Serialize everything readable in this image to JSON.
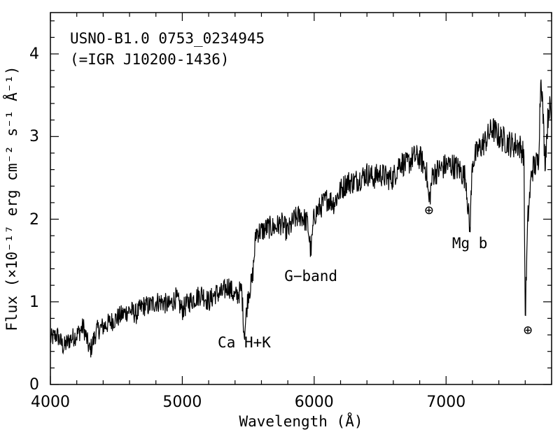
{
  "chart_data": {
    "type": "line",
    "title": "USNO-B1.0 0753_0234945",
    "subtitle": "(=IGR J10200-1436)",
    "xlabel": "Wavelength (Å)",
    "ylabel": "Flux (×10⁻¹⁷ erg cm⁻² s⁻¹ Å⁻¹)",
    "xlim": [
      4000,
      7800
    ],
    "ylim": [
      0,
      4.5
    ],
    "xticks": [
      "4000",
      "5000",
      "6000",
      "7000"
    ],
    "yticks": [
      "0",
      "1",
      "2",
      "3",
      "4"
    ],
    "grid": false,
    "series": [
      {
        "values_note": "",
        "x": [
          4000,
          4050,
          4100,
          4150,
          4200,
          4250,
          4300,
          4350,
          4400,
          4450,
          4500,
          4550,
          4600,
          4650,
          4700,
          4750,
          4800,
          4850,
          4900,
          4950,
          5000,
          5050,
          5100,
          5150,
          5200,
          5250,
          5300,
          5350,
          5400,
          5450,
          5470,
          5500,
          5530,
          5560,
          5600,
          5650,
          5700,
          5750,
          5800,
          5850,
          5900,
          5950,
          5975,
          6000,
          6050,
          6100,
          6150,
          6200,
          6250,
          6300,
          6350,
          6400,
          6450,
          6500,
          6550,
          6600,
          6650,
          6700,
          6750,
          6800,
          6850,
          6870,
          6900,
          6950,
          7000,
          7050,
          7100,
          7150,
          7180,
          7200,
          7250,
          7300,
          7350,
          7400,
          7450,
          7500,
          7550,
          7590,
          7600,
          7620,
          7650,
          7700,
          7720,
          7750,
          7780,
          7800
        ],
        "y": [
          0.55,
          0.6,
          0.45,
          0.55,
          0.6,
          0.7,
          0.4,
          0.65,
          0.7,
          0.75,
          0.8,
          0.85,
          0.9,
          0.85,
          0.95,
          0.95,
          1.0,
          1.0,
          0.95,
          1.05,
          0.9,
          1.0,
          1.05,
          1.1,
          1.0,
          1.1,
          1.1,
          1.2,
          1.05,
          1.15,
          0.6,
          1.1,
          1.25,
          1.85,
          1.85,
          1.9,
          1.9,
          1.95,
          1.85,
          2.0,
          2.05,
          1.95,
          1.6,
          2.05,
          2.15,
          2.25,
          2.2,
          2.35,
          2.45,
          2.45,
          2.5,
          2.55,
          2.5,
          2.55,
          2.5,
          2.5,
          2.7,
          2.65,
          2.75,
          2.75,
          2.6,
          2.2,
          2.55,
          2.6,
          2.65,
          2.65,
          2.6,
          2.5,
          1.85,
          2.7,
          2.85,
          2.95,
          3.1,
          3.0,
          2.95,
          2.9,
          2.9,
          2.8,
          0.8,
          2.0,
          2.6,
          2.7,
          3.8,
          2.7,
          3.4,
          3.2
        ]
      }
    ],
    "annotations": [
      {
        "text": "Ca H+K",
        "x": 5470,
        "y": 0.45
      },
      {
        "text": "G−band",
        "x": 5975,
        "y": 1.25
      },
      {
        "text": "⊕",
        "x": 6870,
        "y": 2.05
      },
      {
        "text": "Mg b",
        "x": 7180,
        "y": 1.65
      },
      {
        "text": "⊕",
        "x": 7620,
        "y": 0.6
      }
    ]
  }
}
